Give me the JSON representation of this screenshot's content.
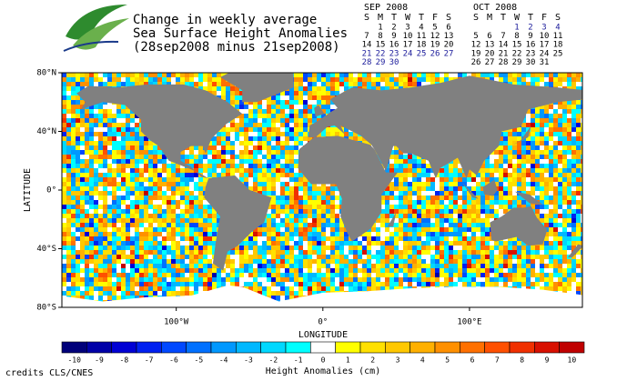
{
  "header": {
    "title_lines": [
      "Change in weekly average",
      "Sea Surface Height Anomalies",
      "(28sep2008 minus 21sep2008)"
    ]
  },
  "calendars": [
    {
      "title": "SEP 2008",
      "weekdays": [
        "S",
        "M",
        "T",
        "W",
        "T",
        "F",
        "S"
      ],
      "weeks": [
        [
          null,
          "1",
          "2",
          "3",
          "4",
          "5",
          "6"
        ],
        [
          "7",
          "8",
          "9",
          "10",
          "11",
          "12",
          "13"
        ],
        [
          "14",
          "15",
          "16",
          "17",
          "18",
          "19",
          "20"
        ],
        [
          "21",
          "22",
          "23",
          "24",
          "25",
          "26",
          "27"
        ],
        [
          "28",
          "29",
          "30",
          null,
          null,
          null,
          null
        ]
      ],
      "week_colors": [
        "#000000",
        "#000000",
        "#000000",
        "#1a1a9a",
        "#1a1a9a"
      ]
    },
    {
      "title": "OCT 2008",
      "weekdays": [
        "S",
        "M",
        "T",
        "W",
        "T",
        "F",
        "S"
      ],
      "weeks": [
        [
          null,
          null,
          null,
          "1",
          "2",
          "3",
          "4"
        ],
        [
          "5",
          "6",
          "7",
          "8",
          "9",
          "10",
          "11"
        ],
        [
          "12",
          "13",
          "14",
          "15",
          "16",
          "17",
          "18"
        ],
        [
          "19",
          "20",
          "21",
          "22",
          "23",
          "24",
          "25"
        ],
        [
          "26",
          "27",
          "28",
          "29",
          "30",
          "31",
          null
        ]
      ],
      "week_colors": [
        "#1a1a9a",
        "#000000",
        "#000000",
        "#000000",
        "#000000"
      ]
    }
  ],
  "chart_data": {
    "type": "map",
    "xlabel": "LONGITUDE",
    "ylabel": "LATITUDE",
    "xlim": [
      -178,
      177
    ],
    "ylim": [
      -80,
      80
    ],
    "xticks": [
      {
        "value": -100,
        "label": "100°W"
      },
      {
        "value": 0,
        "label": "0°"
      },
      {
        "value": 100,
        "label": "100°E"
      }
    ],
    "yticks": [
      {
        "value": 80,
        "label": "80°N"
      },
      {
        "value": 40,
        "label": "40°N"
      },
      {
        "value": 0,
        "label": "0°"
      },
      {
        "value": -40,
        "label": "40°S"
      },
      {
        "value": -80,
        "label": "80°S"
      }
    ],
    "land_color": "#808080",
    "colorbar": {
      "label": "Height Anomalies (cm)",
      "ticks": [
        -10,
        -9,
        -8,
        -7,
        -6,
        -5,
        -4,
        -3,
        -2,
        -1,
        0,
        1,
        2,
        3,
        4,
        5,
        6,
        7,
        8,
        9,
        10
      ],
      "colors": [
        "#00007a",
        "#0000a8",
        "#0000d4",
        "#0020f0",
        "#0048ff",
        "#0070ff",
        "#0098ff",
        "#00b8ff",
        "#00d8ff",
        "#00ffff",
        "#ffffff",
        "#ffff00",
        "#ffe000",
        "#ffc800",
        "#ffb000",
        "#ff9000",
        "#ff7000",
        "#ff5000",
        "#f03000",
        "#d81000",
        "#c00000"
      ]
    }
  },
  "footer": {
    "credits": "credits CLS/CNES"
  }
}
